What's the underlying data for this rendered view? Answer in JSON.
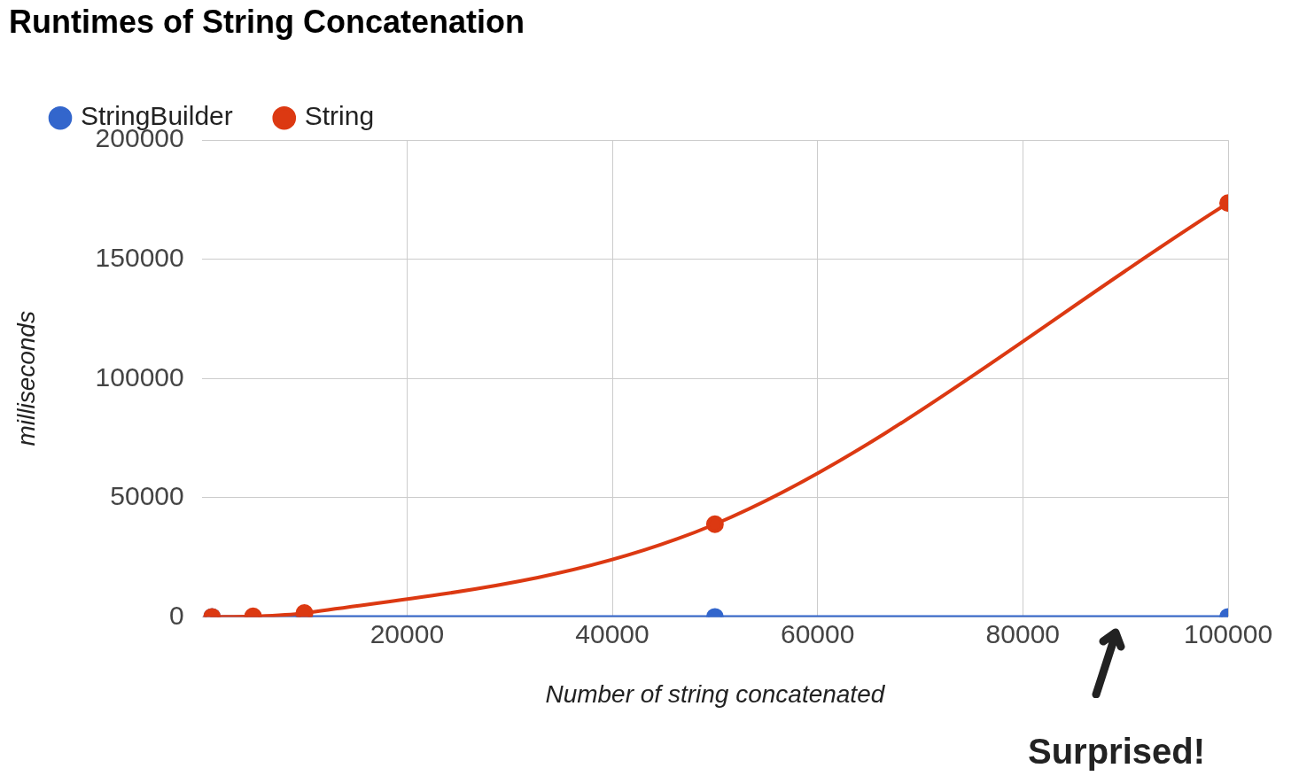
{
  "chart_data": {
    "type": "line",
    "title": "Runtimes of String Concatenation",
    "xlabel": "Number of string concatenated",
    "ylabel": "milliseconds",
    "x": [
      1000,
      5000,
      10000,
      50000,
      100000
    ],
    "series": [
      {
        "name": "StringBuilder",
        "color": "#3366cc",
        "values": [
          0,
          0,
          0,
          0,
          0
        ]
      },
      {
        "name": "String",
        "color": "#dc3912",
        "values": [
          0,
          200,
          1600,
          38900,
          173600
        ]
      }
    ],
    "xlim": [
      0,
      100000
    ],
    "xticks": [
      20000,
      40000,
      60000,
      80000,
      100000
    ],
    "ylim": [
      0,
      200000
    ],
    "yticks": [
      0,
      50000,
      100000,
      150000,
      200000
    ],
    "grid": true,
    "legend": "top left",
    "marker": "circle",
    "line_style": "solid",
    "annotations": [
      "Surprised!"
    ]
  }
}
